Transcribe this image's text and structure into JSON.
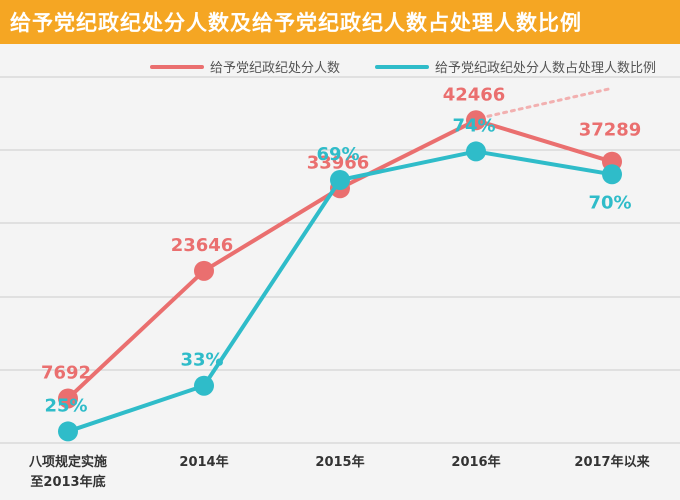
{
  "title": "给予党纪政纪处分人数及给予党纪政纪人数占处理人数比例",
  "colors": {
    "header": "#f5a623",
    "series1": "#ea6f6f",
    "series2": "#2fbcc9",
    "grid": "#cccccc"
  },
  "chart_data": {
    "type": "line",
    "title": "给予党纪政纪处分人数及给予党纪政纪人数占处理人数比例",
    "categories": [
      [
        "八项规定实施",
        "至2013年底"
      ],
      [
        "2014年"
      ],
      [
        "2015年"
      ],
      [
        "2016年"
      ],
      [
        "2017年以来"
      ]
    ],
    "legend_position": "top-right",
    "grid": true,
    "series": [
      {
        "name": "给予党纪政纪处分人数",
        "values": [
          7692,
          23646,
          33966,
          42466,
          37289
        ],
        "labels": [
          "7692",
          "23646",
          "33966",
          "42466",
          "37289"
        ],
        "ylim": [
          0,
          50000
        ]
      },
      {
        "name": "给予党纪政纪处分人数占处理人数比例",
        "values": [
          25,
          33,
          69,
          74,
          70
        ],
        "labels": [
          "25%",
          "33%",
          "69%",
          "74%",
          "70%"
        ],
        "ylim": [
          20,
          90
        ]
      }
    ]
  }
}
